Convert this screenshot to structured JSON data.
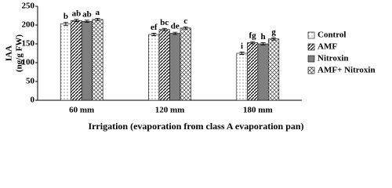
{
  "chart_data": {
    "type": "bar",
    "y_label": [
      "IAA",
      "(ng/g FW)"
    ],
    "x_label": "Irrigation  (evaporation from class A evaporation pan)",
    "categories": [
      "60 mm",
      "120 mm",
      "180 mm"
    ],
    "series": [
      {
        "name": "Control",
        "color": "#ffffff",
        "pattern": "dots",
        "values": [
          203,
          175,
          125
        ],
        "errors": [
          4,
          3,
          3
        ],
        "letters": [
          "b",
          "ef",
          "i"
        ]
      },
      {
        "name": "AMF",
        "color": "#ffffff",
        "pattern": "diagonal",
        "values": [
          212,
          188,
          153
        ],
        "errors": [
          3,
          3,
          3
        ],
        "letters": [
          "ab",
          "bc",
          "fg"
        ]
      },
      {
        "name": "Nitroxin",
        "color": "#7f7f7f",
        "pattern": "solid",
        "values": [
          210,
          178,
          150
        ],
        "errors": [
          3,
          3,
          3
        ],
        "letters": [
          "ab",
          "de",
          "h"
        ]
      },
      {
        "name": "AMF+ Nitroxin",
        "color": "#ffffff",
        "pattern": "cross",
        "values": [
          215,
          192,
          163
        ],
        "errors": [
          3,
          3,
          3
        ],
        "letters": [
          "a",
          "c",
          "g"
        ]
      }
    ],
    "ylim": [
      0,
      250
    ],
    "yticks": [
      0,
      50,
      100,
      150,
      200,
      250
    ],
    "legend": "right"
  }
}
